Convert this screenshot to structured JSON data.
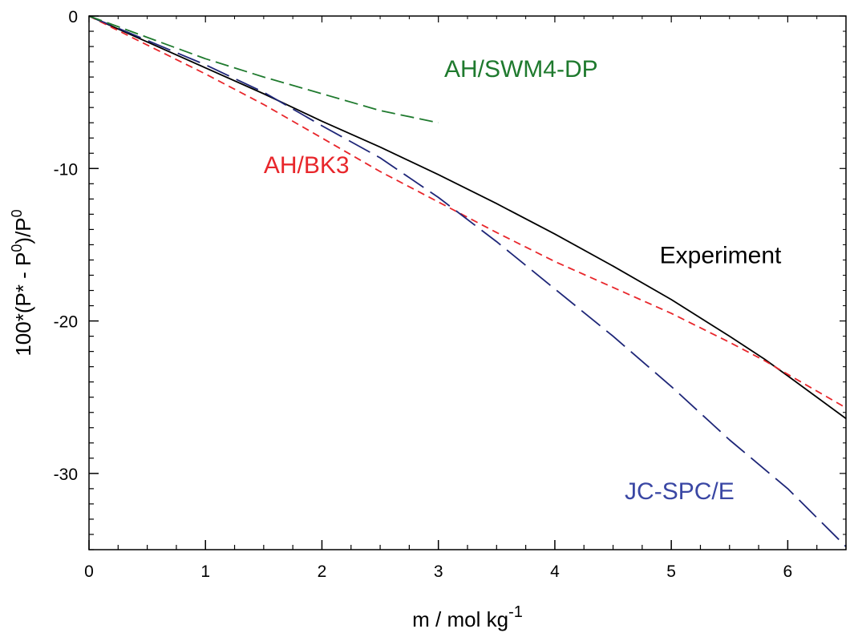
{
  "chart_data": {
    "type": "line",
    "title": "",
    "xlabel": "m / mol kg",
    "xlabel_sup": "-1",
    "ylabel_parts": [
      "100*(P* - P",
      "0",
      ")/P",
      "0"
    ],
    "xlim": [
      0,
      6.5
    ],
    "ylim": [
      -35,
      0
    ],
    "x_ticks": [
      0,
      1,
      2,
      3,
      4,
      5,
      6
    ],
    "y_ticks": [
      0,
      -10,
      -20,
      -30
    ],
    "x_tick_labels": [
      "0",
      "1",
      "2",
      "3",
      "4",
      "5",
      "6"
    ],
    "y_tick_labels": [
      "0",
      "-10",
      "-20",
      "-30"
    ],
    "x_minor_step": 0.25,
    "y_minor_step": 1,
    "grid": false,
    "legend": "inline labels",
    "series": [
      {
        "name": "Experiment",
        "color": "#000000",
        "dash": "solid",
        "points": [
          [
            0,
            0
          ],
          [
            0.5,
            -1.7
          ],
          [
            1,
            -3.4
          ],
          [
            1.5,
            -5.1
          ],
          [
            2,
            -6.9
          ],
          [
            2.5,
            -8.6
          ],
          [
            3,
            -10.4
          ],
          [
            3.5,
            -12.3
          ],
          [
            4,
            -14.3
          ],
          [
            4.5,
            -16.4
          ],
          [
            5,
            -18.6
          ],
          [
            5.5,
            -21.0
          ],
          [
            5.8,
            -22.5
          ],
          [
            6,
            -23.6
          ],
          [
            6.5,
            -26.4
          ]
        ]
      },
      {
        "name": "AH/BK3",
        "color": "#e8262b",
        "dash": "short",
        "points": [
          [
            0,
            0
          ],
          [
            0.5,
            -1.9
          ],
          [
            1,
            -3.8
          ],
          [
            1.5,
            -5.8
          ],
          [
            2,
            -8.0
          ],
          [
            2.5,
            -10.2
          ],
          [
            3,
            -12.2
          ],
          [
            3.5,
            -14.2
          ],
          [
            4,
            -16.1
          ],
          [
            4.5,
            -17.8
          ],
          [
            5,
            -19.5
          ],
          [
            5.5,
            -21.4
          ],
          [
            5.8,
            -22.6
          ],
          [
            6,
            -23.5
          ],
          [
            6.5,
            -25.7
          ]
        ]
      },
      {
        "name": "JC-SPC/E",
        "color": "#1e2678",
        "dash": "long",
        "points": [
          [
            0,
            0
          ],
          [
            0.5,
            -1.6
          ],
          [
            1,
            -3.2
          ],
          [
            1.5,
            -5.0
          ],
          [
            2,
            -7.2
          ],
          [
            2.5,
            -9.3
          ],
          [
            3,
            -11.9
          ],
          [
            3.5,
            -14.8
          ],
          [
            4,
            -17.9
          ],
          [
            4.5,
            -21.0
          ],
          [
            5,
            -24.3
          ],
          [
            5.5,
            -27.8
          ],
          [
            6,
            -31.0
          ],
          [
            6.5,
            -34.8
          ]
        ]
      },
      {
        "name": "AH/SWM4-DP",
        "color": "#1f7a2e",
        "dash": "medium",
        "points": [
          [
            0,
            0
          ],
          [
            0.5,
            -1.4
          ],
          [
            1,
            -2.8
          ],
          [
            1.5,
            -4.0
          ],
          [
            2,
            -5.1
          ],
          [
            2.5,
            -6.2
          ],
          [
            3,
            -7.0
          ]
        ]
      }
    ],
    "labels": [
      {
        "text": "AH/SWM4-DP",
        "color": "#1f7a2e",
        "x": 3.05,
        "y": -4.0
      },
      {
        "text": "AH/BK3",
        "color": "#e8262b",
        "x": 1.5,
        "y": -10.3
      },
      {
        "text": "Experiment",
        "color": "#000000",
        "x": 4.9,
        "y": -16.2
      },
      {
        "text": "JC-SPC/E",
        "color": "#3a47a4",
        "x": 4.6,
        "y": -31.7
      }
    ]
  }
}
